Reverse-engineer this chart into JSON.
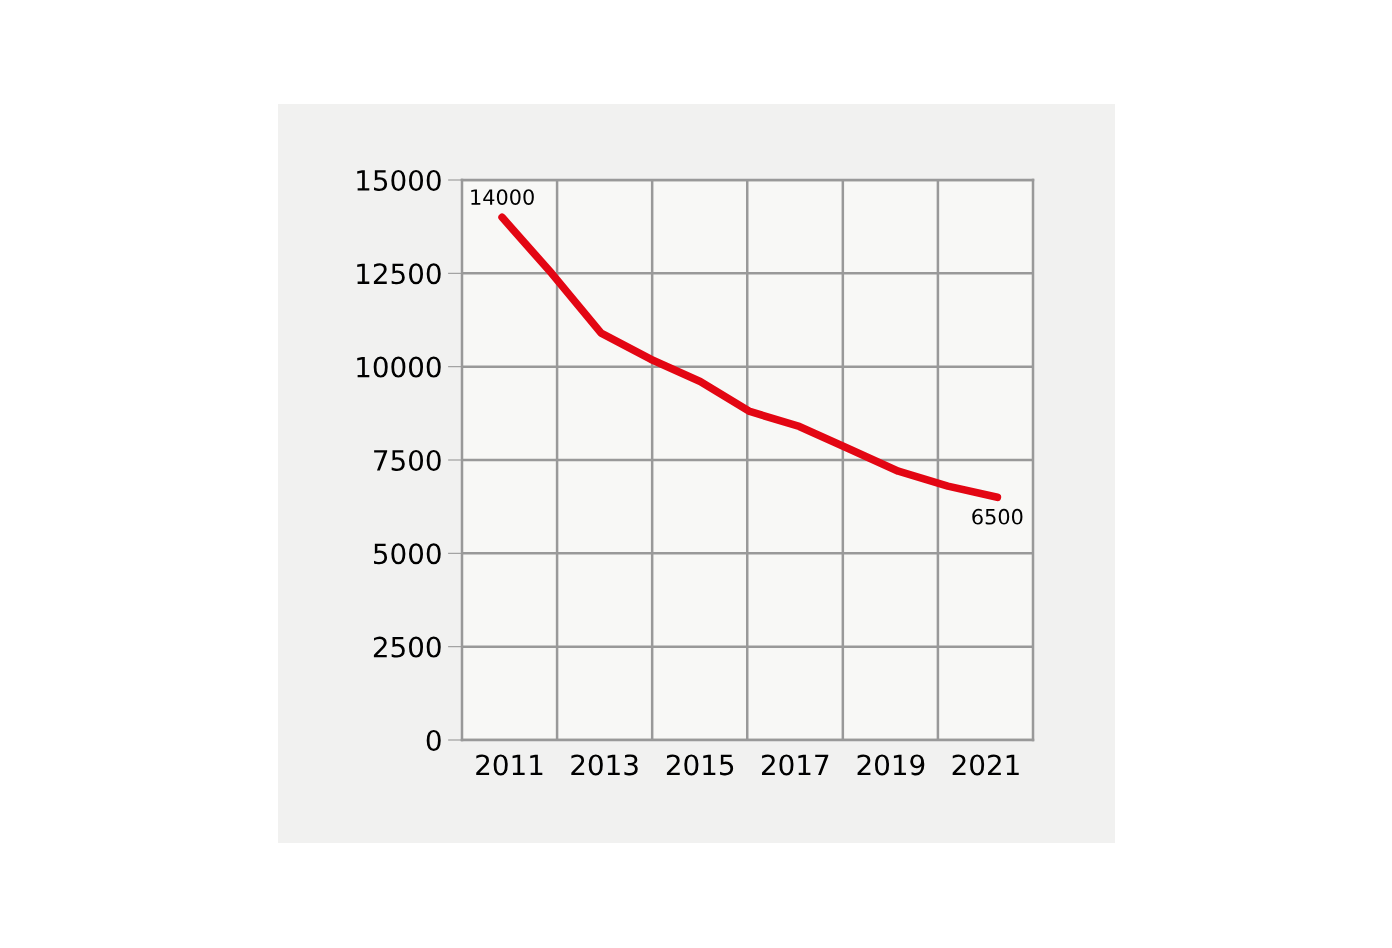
{
  "chart_data": {
    "type": "line",
    "x": [
      2011,
      2012,
      2013,
      2014,
      2015,
      2016,
      2017,
      2018,
      2019,
      2020,
      2021
    ],
    "series": [
      {
        "color": "#e30613",
        "values": [
          14000,
          12500,
          10900,
          10200,
          9600,
          8800,
          8400,
          7800,
          7200,
          6800,
          6500
        ],
        "value_labels": [
          "14000",
          null,
          null,
          null,
          null,
          null,
          null,
          null,
          null,
          null,
          "6500"
        ]
      }
    ],
    "xlim": [
      2010.19,
      2021.72
    ],
    "xticks": [
      {
        "value": 2011.15,
        "label": "2011"
      },
      {
        "value": 2012.11,
        "label": null
      },
      {
        "value": 2013.07,
        "label": "2013"
      },
      {
        "value": 2014.03,
        "label": null
      },
      {
        "value": 2015.0,
        "label": "2015"
      },
      {
        "value": 2015.95,
        "label": null
      },
      {
        "value": 2016.92,
        "label": "2017"
      },
      {
        "value": 2017.88,
        "label": null
      },
      {
        "value": 2018.85,
        "label": "2019"
      },
      {
        "value": 2019.8,
        "label": null
      },
      {
        "value": 2020.77,
        "label": "2021"
      }
    ],
    "ylim": [
      0,
      15000
    ],
    "yticks": [
      0,
      2500,
      5000,
      7500,
      10000,
      12500,
      15000
    ],
    "grid": true,
    "marker": "none",
    "line_style": "solid"
  }
}
